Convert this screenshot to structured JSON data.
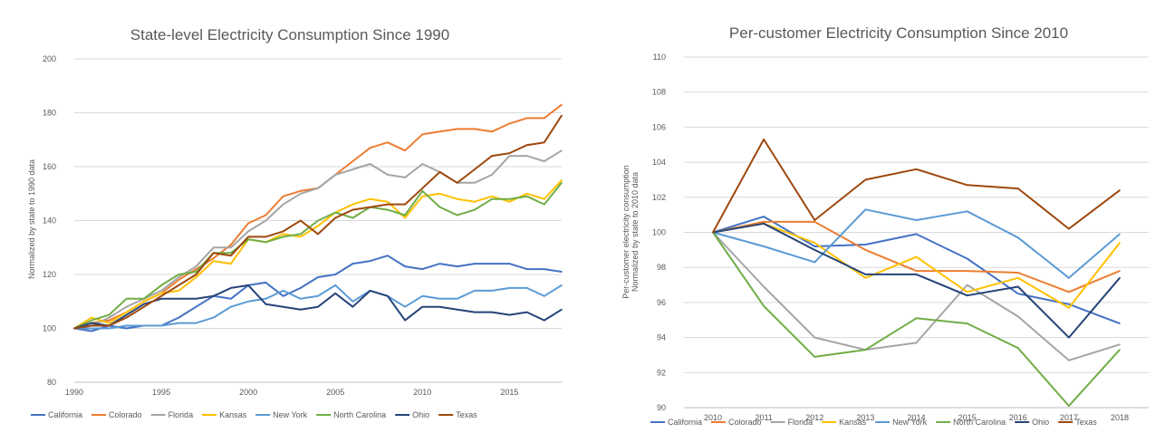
{
  "chart_data": [
    {
      "type": "line",
      "title": "State-level Electricity Consumption Since 1990",
      "xlabel": "",
      "ylabel": "Normalized by state to 1990 data",
      "ylim": [
        80,
        200
      ],
      "yticks": [
        80,
        100,
        120,
        140,
        160,
        180,
        200
      ],
      "xlim": [
        1990,
        2018
      ],
      "xticks": [
        1990,
        1995,
        2000,
        2005,
        2010,
        2015
      ],
      "x": [
        1990,
        1991,
        1992,
        1993,
        1994,
        1995,
        1996,
        1997,
        1998,
        1999,
        2000,
        2001,
        2002,
        2003,
        2004,
        2005,
        2006,
        2007,
        2008,
        2009,
        2010,
        2011,
        2012,
        2013,
        2014,
        2015,
        2016,
        2017,
        2018
      ],
      "series": [
        {
          "name": "California",
          "color": "#4472c4",
          "values": [
            100,
            99,
            101,
            100,
            101,
            101,
            104,
            108,
            112,
            111,
            116,
            117,
            112,
            115,
            119,
            120,
            124,
            125,
            127,
            123,
            122,
            124,
            123,
            124,
            124,
            124,
            122,
            122,
            121
          ]
        },
        {
          "name": "Colorado",
          "color": "#ed7d31",
          "values": [
            100,
            102,
            103,
            106,
            110,
            113,
            118,
            122,
            126,
            131,
            139,
            142,
            149,
            151,
            152,
            157,
            162,
            167,
            169,
            166,
            172,
            173,
            174,
            174,
            173,
            176,
            178,
            178,
            183
          ]
        },
        {
          "name": "Florida",
          "color": "#a5a5a5",
          "values": [
            100,
            101,
            104,
            108,
            111,
            114,
            119,
            123,
            130,
            130,
            136,
            140,
            146,
            150,
            152,
            157,
            159,
            161,
            157,
            156,
            161,
            158,
            154,
            154,
            157,
            164,
            164,
            162,
            166
          ]
        },
        {
          "name": "Kansas",
          "color": "#ffc000",
          "values": [
            100,
            104,
            102,
            106,
            110,
            113,
            114,
            119,
            125,
            124,
            133,
            132,
            135,
            134,
            138,
            143,
            146,
            148,
            147,
            141,
            149,
            150,
            148,
            147,
            149,
            147,
            150,
            148,
            155
          ]
        },
        {
          "name": "New York",
          "color": "#5b9bd5",
          "values": [
            100,
            100,
            100,
            101,
            101,
            101,
            102,
            102,
            104,
            108,
            110,
            111,
            114,
            111,
            112,
            116,
            110,
            114,
            112,
            108,
            112,
            111,
            111,
            114,
            114,
            115,
            115,
            112,
            116
          ]
        },
        {
          "name": "North Carolina",
          "color": "#70ad47",
          "values": [
            100,
            103,
            105,
            111,
            111,
            116,
            120,
            121,
            128,
            128,
            133,
            132,
            134,
            135,
            140,
            143,
            141,
            145,
            144,
            142,
            151,
            145,
            142,
            144,
            148,
            148,
            149,
            146,
            154
          ]
        },
        {
          "name": "Ohio",
          "color": "#264478",
          "values": [
            100,
            102,
            101,
            105,
            109,
            111,
            111,
            111,
            112,
            115,
            116,
            109,
            108,
            107,
            108,
            113,
            108,
            114,
            112,
            103,
            108,
            108,
            107,
            106,
            106,
            105,
            106,
            103,
            107
          ]
        },
        {
          "name": "Texas",
          "color": "#9e480e",
          "values": [
            100,
            101,
            101,
            104,
            108,
            112,
            116,
            120,
            128,
            127,
            134,
            134,
            136,
            140,
            135,
            141,
            144,
            145,
            146,
            146,
            152,
            158,
            154,
            159,
            164,
            165,
            168,
            169,
            179
          ]
        }
      ]
    },
    {
      "type": "line",
      "title": "Per-customer Electricity Consumption Since 2010",
      "xlabel": "",
      "ylabel": [
        "Per-customer electricity consumption",
        "Normalized by state to 2010 data"
      ],
      "ylim": [
        90,
        110
      ],
      "yticks": [
        90,
        92,
        94,
        96,
        98,
        100,
        102,
        104,
        106,
        108,
        110
      ],
      "xticks": [
        2010,
        2011,
        2012,
        2013,
        2014,
        2015,
        2016,
        2017,
        2018
      ],
      "x": [
        2010,
        2011,
        2012,
        2013,
        2014,
        2015,
        2016,
        2017,
        2018
      ],
      "series": [
        {
          "name": "California",
          "color": "#4472c4",
          "values": [
            100,
            100.9,
            99.2,
            99.3,
            99.9,
            98.5,
            96.5,
            95.9,
            94.8
          ]
        },
        {
          "name": "Colorado",
          "color": "#ed7d31",
          "values": [
            100,
            100.6,
            100.6,
            99.0,
            97.8,
            97.8,
            97.7,
            96.6,
            97.8
          ]
        },
        {
          "name": "Florida",
          "color": "#a5a5a5",
          "values": [
            100,
            96.9,
            94.0,
            93.3,
            93.7,
            97.0,
            95.2,
            92.7,
            93.6
          ]
        },
        {
          "name": "Kansas",
          "color": "#ffc000",
          "values": [
            100,
            100.5,
            99.4,
            97.4,
            98.6,
            96.6,
            97.4,
            95.7,
            99.4
          ]
        },
        {
          "name": "New York",
          "color": "#5b9bd5",
          "values": [
            100,
            99.2,
            98.3,
            101.3,
            100.7,
            101.2,
            99.7,
            97.4,
            99.9
          ]
        },
        {
          "name": "North Carolina",
          "color": "#70ad47",
          "values": [
            100,
            95.8,
            92.9,
            93.3,
            95.1,
            94.8,
            93.4,
            90.1,
            93.3
          ]
        },
        {
          "name": "Ohio",
          "color": "#264478",
          "values": [
            100,
            100.5,
            99.0,
            97.6,
            97.6,
            96.4,
            96.9,
            94.0,
            97.4
          ]
        },
        {
          "name": "Texas",
          "color": "#9e480e",
          "values": [
            100,
            105.3,
            100.7,
            103.0,
            103.6,
            102.7,
            102.5,
            100.2,
            102.4
          ]
        }
      ]
    }
  ]
}
